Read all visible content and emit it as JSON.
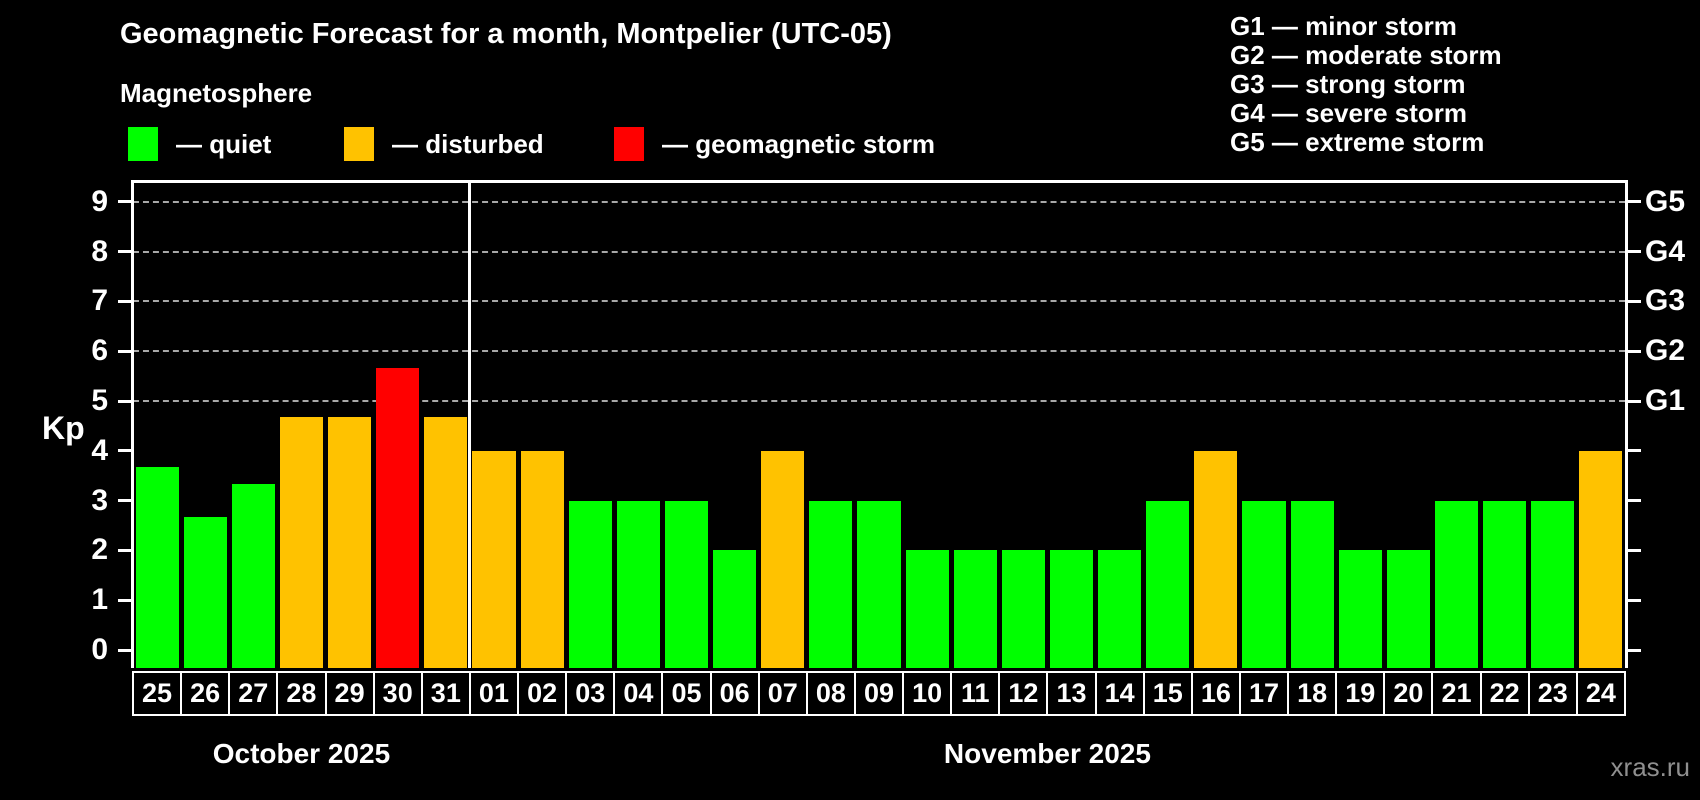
{
  "header": {
    "title": "Geomagnetic Forecast for a month, Montpelier (UTC-05)",
    "subtitle": "Magnetosphere"
  },
  "legend": {
    "items": [
      {
        "label": "— quiet",
        "status": "quiet",
        "color": "#00ff00"
      },
      {
        "label": "— disturbed",
        "status": "disturbed",
        "color": "#ffc200"
      },
      {
        "label": "— geomagnetic storm",
        "status": "storm",
        "color": "#ff0000"
      }
    ]
  },
  "g_scale_legend": {
    "lines": [
      "G1 — minor storm",
      "G2 — moderate storm",
      "G3 — strong storm",
      "G4 — severe storm",
      "G5 — extreme storm"
    ]
  },
  "watermark": "xras.ru",
  "chart_data": {
    "type": "bar",
    "title": "Geomagnetic Forecast for a month, Montpelier (UTC-05)",
    "subtitle": "Magnetosphere",
    "ylabel": "Kp",
    "ylim": [
      0,
      9
    ],
    "yticks": [
      0,
      1,
      2,
      3,
      4,
      5,
      6,
      7,
      8,
      9
    ],
    "gridlines_at": [
      5,
      6,
      7,
      8,
      9
    ],
    "grid": "dashed horizontal at storm levels only",
    "legend_position": "top",
    "right_axis_labels": [
      {
        "label": "G1",
        "value": 5
      },
      {
        "label": "G2",
        "value": 6
      },
      {
        "label": "G3",
        "value": 7
      },
      {
        "label": "G4",
        "value": 8
      },
      {
        "label": "G5",
        "value": 9
      }
    ],
    "status_colors": {
      "quiet": "#00ff00",
      "disturbed": "#ffc200",
      "storm": "#ff0000"
    },
    "months": [
      {
        "label": "October 2025",
        "day_count": 7
      },
      {
        "label": "November 2025",
        "day_count": 24
      }
    ],
    "bars": [
      {
        "day": "25",
        "kp": 3.67,
        "status": "quiet"
      },
      {
        "day": "26",
        "kp": 2.67,
        "status": "quiet"
      },
      {
        "day": "27",
        "kp": 3.33,
        "status": "quiet"
      },
      {
        "day": "28",
        "kp": 4.67,
        "status": "disturbed"
      },
      {
        "day": "29",
        "kp": 4.67,
        "status": "disturbed"
      },
      {
        "day": "30",
        "kp": 5.67,
        "status": "storm"
      },
      {
        "day": "31",
        "kp": 4.67,
        "status": "disturbed"
      },
      {
        "day": "01",
        "kp": 4,
        "status": "disturbed"
      },
      {
        "day": "02",
        "kp": 4,
        "status": "disturbed"
      },
      {
        "day": "03",
        "kp": 3,
        "status": "quiet"
      },
      {
        "day": "04",
        "kp": 3,
        "status": "quiet"
      },
      {
        "day": "05",
        "kp": 3,
        "status": "quiet"
      },
      {
        "day": "06",
        "kp": 2,
        "status": "quiet"
      },
      {
        "day": "07",
        "kp": 4,
        "status": "disturbed"
      },
      {
        "day": "08",
        "kp": 3,
        "status": "quiet"
      },
      {
        "day": "09",
        "kp": 3,
        "status": "quiet"
      },
      {
        "day": "10",
        "kp": 2,
        "status": "quiet"
      },
      {
        "day": "11",
        "kp": 2,
        "status": "quiet"
      },
      {
        "day": "12",
        "kp": 2,
        "status": "quiet"
      },
      {
        "day": "13",
        "kp": 2,
        "status": "quiet"
      },
      {
        "day": "14",
        "kp": 2,
        "status": "quiet"
      },
      {
        "day": "15",
        "kp": 3,
        "status": "quiet"
      },
      {
        "day": "16",
        "kp": 4,
        "status": "disturbed"
      },
      {
        "day": "17",
        "kp": 3,
        "status": "quiet"
      },
      {
        "day": "18",
        "kp": 3,
        "status": "quiet"
      },
      {
        "day": "19",
        "kp": 2,
        "status": "quiet"
      },
      {
        "day": "20",
        "kp": 2,
        "status": "quiet"
      },
      {
        "day": "21",
        "kp": 3,
        "status": "quiet"
      },
      {
        "day": "22",
        "kp": 3,
        "status": "quiet"
      },
      {
        "day": "23",
        "kp": 3,
        "status": "quiet"
      },
      {
        "day": "24",
        "kp": 4,
        "status": "disturbed"
      }
    ]
  }
}
